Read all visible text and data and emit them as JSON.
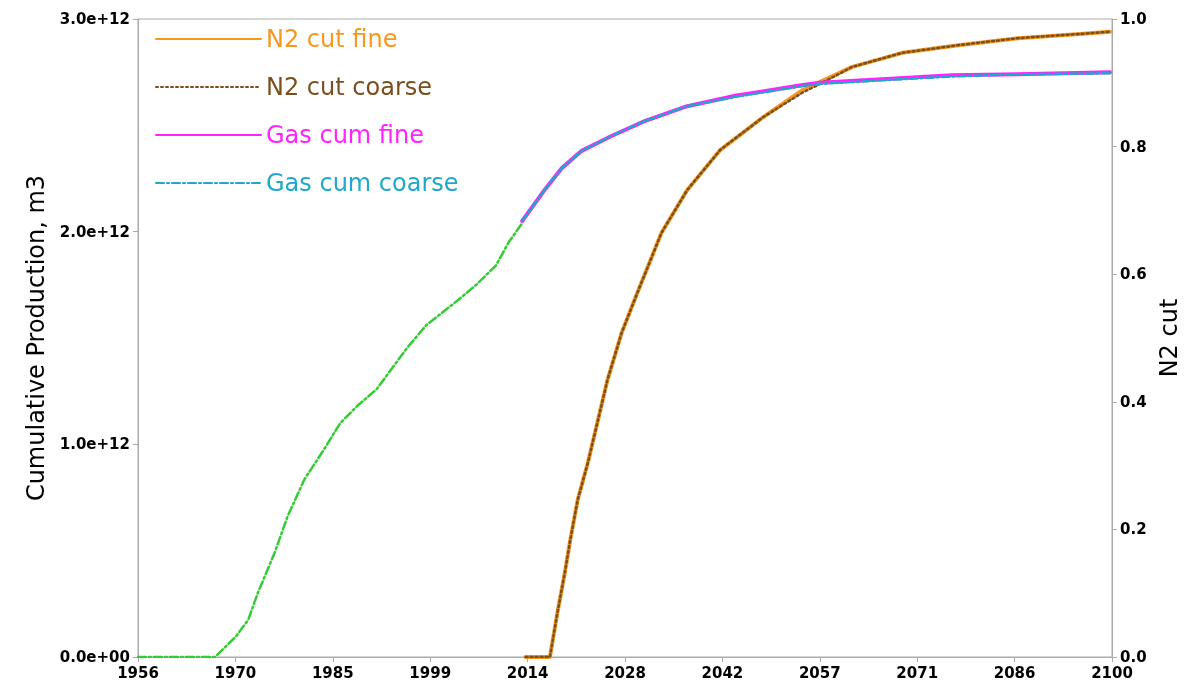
{
  "chart_data": {
    "type": "line",
    "ylabel": "Cumulative Production, m3",
    "y2label": "N2 cut",
    "xlim": [
      1956,
      2100
    ],
    "xticks": [
      {
        "value": 1956,
        "label": "1956"
      },
      {
        "value": 1970.4,
        "label": "1970"
      },
      {
        "value": 1984.8,
        "label": "1985"
      },
      {
        "value": 1999.2,
        "label": "1999"
      },
      {
        "value": 2013.6,
        "label": "2014"
      },
      {
        "value": 2028,
        "label": "2028"
      },
      {
        "value": 2042.4,
        "label": "2042"
      },
      {
        "value": 2056.8,
        "label": "2057"
      },
      {
        "value": 2071.2,
        "label": "2071"
      },
      {
        "value": 2085.6,
        "label": "2086"
      },
      {
        "value": 2100,
        "label": "2100"
      }
    ],
    "ylim": [
      0,
      3000000000000
    ],
    "yticks": [
      {
        "value": 0,
        "label": "0.0e+00"
      },
      {
        "value": 1000000000000,
        "label": "1.0e+12"
      },
      {
        "value": 2000000000000,
        "label": "2.0e+12"
      },
      {
        "value": 3000000000000,
        "label": "3.0e+12"
      }
    ],
    "y2lim": [
      0,
      1
    ],
    "y2ticks": [
      {
        "value": 0,
        "label": "0.0"
      },
      {
        "value": 0.2,
        "label": "0.2"
      },
      {
        "value": 0.4,
        "label": "0.4"
      },
      {
        "value": 0.6,
        "label": "0.6"
      },
      {
        "value": 0.8,
        "label": "0.8"
      },
      {
        "value": 1,
        "label": "1.0"
      }
    ],
    "grid": false,
    "legend": "top left",
    "marker": "none",
    "series": [
      {
        "name": "N2 cut fine",
        "color": "#f7971e",
        "axis": "y2",
        "line_style": "solid",
        "x": [
          2013.3,
          2016.9,
          2018,
          2019.1,
          2019.9,
          2021,
          2022.5,
          2024,
          2025.4,
          2027.5,
          2029.8,
          2033.4,
          2037.2,
          2042.1,
          2048.4,
          2054.3,
          2056.8,
          2061.6,
          2069,
          2077.3,
          2086.1,
          2095.8,
          2099.7
        ],
        "values": [
          0,
          0,
          0.069,
          0.132,
          0.183,
          0.246,
          0.304,
          0.371,
          0.434,
          0.508,
          0.57,
          0.665,
          0.732,
          0.795,
          0.846,
          0.889,
          0.901,
          0.925,
          0.947,
          0.959,
          0.97,
          0.977,
          0.98
        ]
      },
      {
        "name": "N2 cut coarse",
        "color": "#7a4f1e",
        "axis": "y2",
        "line_style": "dotted",
        "x": [
          2013.3,
          2016.9,
          2018,
          2019.1,
          2019.9,
          2021,
          2022.5,
          2024,
          2025.4,
          2027.5,
          2029.8,
          2033.4,
          2037.2,
          2042.1,
          2048.4,
          2054.3,
          2056.8,
          2061.6,
          2069,
          2077.3,
          2086.1,
          2095.8,
          2099.7
        ],
        "values": [
          0,
          0,
          0.069,
          0.132,
          0.183,
          0.246,
          0.304,
          0.371,
          0.434,
          0.508,
          0.57,
          0.665,
          0.732,
          0.795,
          0.846,
          0.885,
          0.898,
          0.925,
          0.947,
          0.959,
          0.97,
          0.977,
          0.98
        ]
      },
      {
        "name": "Gas cum fine",
        "color": "#ff22ff",
        "line_style": "solid",
        "x": [
          2012.8,
          2016.2,
          2018.7,
          2021.6,
          2026,
          2030.9,
          2037.2,
          2044.5,
          2049.5,
          2054.3,
          2056.8,
          2067.9,
          2076.3,
          2086.1,
          2099.7
        ],
        "values": [
          2050000000000,
          2200000000000,
          2300000000000,
          2380000000000,
          2450000000000,
          2520000000000,
          2590000000000,
          2640000000000,
          2665000000000,
          2690000000000,
          2700000000000,
          2720000000000,
          2735000000000,
          2740000000000,
          2750000000000
        ]
      },
      {
        "name": "Gas cum coarse",
        "color": "#1fa8c9",
        "line_style": "dashed",
        "x": [
          2012.8,
          2016.2,
          2018.7,
          2021.6,
          2026,
          2030.9,
          2037.2,
          2044.5,
          2049.5,
          2054.3,
          2056.8,
          2067.9,
          2076.3,
          2086.1,
          2099.7
        ],
        "values": [
          2050000000000,
          2200000000000,
          2300000000000,
          2380000000000,
          2450000000000,
          2520000000000,
          2590000000000,
          2635000000000,
          2660000000000,
          2685000000000,
          2695000000000,
          2715000000000,
          2730000000000,
          2740000000000,
          2745000000000
        ]
      },
      {
        "color": "#33cc33",
        "line_style": "dashed",
        "x": [
          1956,
          1967.4,
          1970.4,
          1972.3,
          1973.7,
          1976.2,
          1978.1,
          1980.6,
          1983.5,
          1985.9,
          1988.4,
          1991.3,
          1995.7,
          1998.6,
          2003,
          2006,
          2008.9,
          2010.8,
          2012.8
        ],
        "values": [
          0,
          0,
          94000000000,
          175000000000,
          300000000000,
          490000000000,
          660000000000,
          835000000000,
          976000000000,
          1100000000000,
          1180000000000,
          1260000000000,
          1450000000000,
          1560000000000,
          1670000000000,
          1750000000000,
          1840000000000,
          1950000000000,
          2040000000000
        ]
      }
    ]
  }
}
